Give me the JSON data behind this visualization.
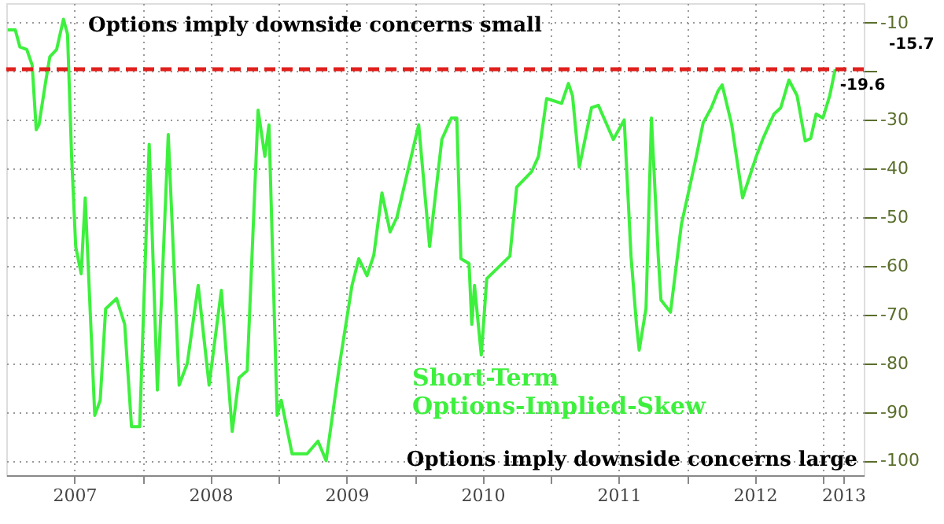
{
  "chart_data": {
    "type": "line",
    "x": [
      2007.01,
      2007.066,
      2007.1,
      2007.15,
      2007.19,
      2007.22,
      2007.24,
      2007.29,
      2007.32,
      2007.37,
      2007.42,
      2007.45,
      2007.48,
      2007.51,
      2007.55,
      2007.58,
      2007.65,
      2007.69,
      2007.73,
      2007.81,
      2007.87,
      2007.92,
      2007.98,
      2008.05,
      2008.11,
      2008.14,
      2008.19,
      2008.27,
      2008.33,
      2008.41,
      2008.49,
      2008.58,
      2008.66,
      2008.71,
      2008.77,
      2008.85,
      2008.9,
      2008.93,
      2008.99,
      2009.02,
      2009.1,
      2009.21,
      2009.29,
      2009.35,
      2009.45,
      2009.54,
      2009.59,
      2009.65,
      2009.7,
      2009.76,
      2009.82,
      2009.87,
      2010.03,
      2010.11,
      2010.2,
      2010.27,
      2010.31,
      2010.34,
      2010.4,
      2010.42,
      2010.44,
      2010.49,
      2010.53,
      2010.7,
      2010.75,
      2010.86,
      2010.91,
      2010.97,
      2011.08,
      2011.13,
      2011.16,
      2011.21,
      2011.3,
      2011.35,
      2011.46,
      2011.54,
      2011.59,
      2011.63,
      2011.65,
      2011.7,
      2011.74,
      2011.79,
      2011.81,
      2011.88,
      2011.96,
      2012.07,
      2012.12,
      2012.18,
      2012.23,
      2012.26,
      2012.33,
      2012.41,
      2012.51,
      2012.56,
      2012.64,
      2012.69,
      2012.75,
      2012.81,
      2012.87,
      2012.91,
      2012.95,
      2013.0,
      2013.05,
      2013.09
    ],
    "series": [
      {
        "name": "Short-Term Options-Implied-Skew",
        "color": "#3ef03e",
        "values": [
          -11.5,
          -11.5,
          -15,
          -15.5,
          -18.7,
          -32,
          -31,
          -22,
          -17,
          -15.5,
          -9.3,
          -12.4,
          -37.5,
          -56,
          -61.6,
          -46,
          -90.7,
          -87.6,
          -68.8,
          -66.7,
          -72,
          -93,
          -93,
          -35,
          -85.5,
          -67,
          -33,
          -84.5,
          -80,
          -64,
          -84.5,
          -65,
          -94,
          -83,
          -81.5,
          -28,
          -37.5,
          -31,
          -90.7,
          -87.6,
          -98.6,
          -98.6,
          -96,
          -100,
          -80,
          -64,
          -58.5,
          -62,
          -57.8,
          -45,
          -53,
          -50,
          -31,
          -56,
          -34,
          -29.6,
          -29.6,
          -58.5,
          -59.5,
          -72,
          -64,
          -78.3,
          -62.6,
          -58,
          -43.8,
          -40.6,
          -37.5,
          -25.6,
          -26.6,
          -22.5,
          -25,
          -39.7,
          -27.5,
          -27,
          -34,
          -30,
          -58,
          -72,
          -77.3,
          -68.8,
          -29.6,
          -58,
          -67,
          -69.5,
          -51.5,
          -37.5,
          -30.6,
          -27.5,
          -24,
          -22.8,
          -31,
          -46,
          -37.5,
          -33.8,
          -28.8,
          -27.5,
          -21.8,
          -25,
          -34.3,
          -33.8,
          -28.8,
          -29.6,
          -25,
          -19.6
        ],
        "value_labels": [
          null,
          null,
          null,
          null,
          null,
          null,
          null,
          null,
          null,
          null,
          null,
          null,
          null,
          null,
          null,
          null,
          null,
          null,
          null,
          null,
          null,
          null,
          null,
          null,
          null,
          null,
          null,
          null,
          null,
          null,
          null,
          null,
          null,
          null,
          null,
          null,
          null,
          null,
          null,
          null,
          null,
          null,
          null,
          null,
          null,
          null,
          null,
          null,
          null,
          null,
          null,
          null,
          null,
          null,
          null,
          null,
          null,
          null,
          null,
          null,
          null,
          null,
          null,
          null,
          null,
          null,
          null,
          null,
          null,
          null,
          null,
          null,
          null,
          null,
          null,
          null,
          null,
          null,
          null,
          null,
          null,
          null,
          null,
          null,
          null,
          null,
          null,
          null,
          null,
          null,
          null,
          null,
          null,
          null,
          null,
          null,
          null,
          null,
          null,
          null,
          null,
          null,
          null,
          "-19.6"
        ]
      }
    ],
    "xlim": [
      2007.0,
      2013.3
    ],
    "xticks": [
      {
        "value": 2007.5,
        "label": "2007"
      },
      {
        "value": 2008,
        "label": null
      },
      {
        "value": 2008.5,
        "label": "2008"
      },
      {
        "value": 2009,
        "label": null
      },
      {
        "value": 2009.5,
        "label": "2009"
      },
      {
        "value": 2010,
        "label": null
      },
      {
        "value": 2010.5,
        "label": "2010"
      },
      {
        "value": 2011,
        "label": null
      },
      {
        "value": 2011.5,
        "label": "2011"
      },
      {
        "value": 2012,
        "label": null
      },
      {
        "value": 2012.5,
        "label": "2012"
      },
      {
        "value": 2013,
        "label": null
      },
      {
        "value": 2013.15,
        "label": "2013"
      }
    ],
    "ylim": [
      -103,
      -6
    ],
    "yticks": [
      -10,
      {
        "value": -20,
        "label": null
      },
      -30,
      -40,
      -50,
      -60,
      -70,
      -80,
      -90,
      -100
    ],
    "ref_lines": [
      {
        "axis": "y",
        "value": -19.6,
        "color": "#e0201c",
        "line_style": "dashed"
      }
    ],
    "annotations": [
      "Options imply downside concerns small",
      "Options imply downside concerns large",
      "-15.7"
    ],
    "grid": true,
    "legend": false,
    "marker": "none",
    "line_style": "solid"
  }
}
